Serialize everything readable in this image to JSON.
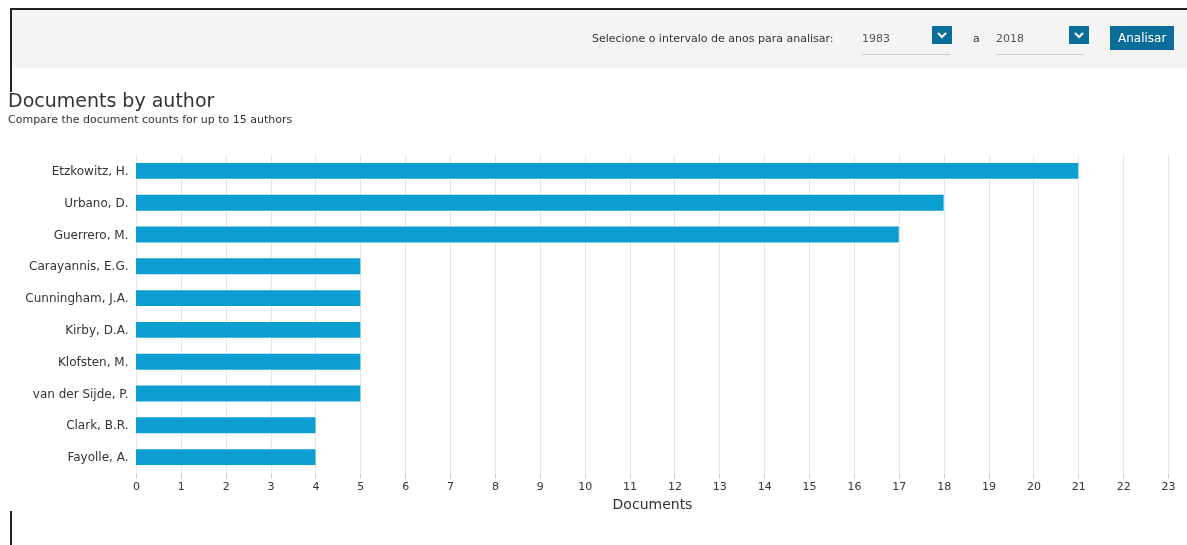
{
  "chart_data": {
    "type": "bar",
    "orientation": "horizontal",
    "title": "Documents by author",
    "subtitle": "Compare the document counts for up to 15 authors",
    "xlabel": "Documents",
    "categories": [
      "Etzkowitz, H.",
      "Urbano, D.",
      "Guerrero, M.",
      "Carayannis, E.G.",
      "Cunningham, J.A.",
      "Kirby, D.A.",
      "Klofsten, M.",
      "van der Sijde, P.",
      "Clark, B.R.",
      "Fayolle, A."
    ],
    "values": [
      21,
      18,
      17,
      5,
      5,
      5,
      5,
      5,
      4,
      4
    ],
    "color": "#0a9fd0",
    "xlim": [
      0,
      23
    ],
    "xticks": [
      0,
      1,
      2,
      3,
      4,
      5,
      6,
      7,
      8,
      9,
      10,
      11,
      12,
      13,
      14,
      15,
      16,
      17,
      18,
      19,
      20,
      21,
      22,
      23
    ],
    "grid": "x",
    "annotations": [
      "Selecione o intervalo de anos para analisar:",
      "1983",
      "a",
      "2018",
      "Analisar"
    ]
  }
}
